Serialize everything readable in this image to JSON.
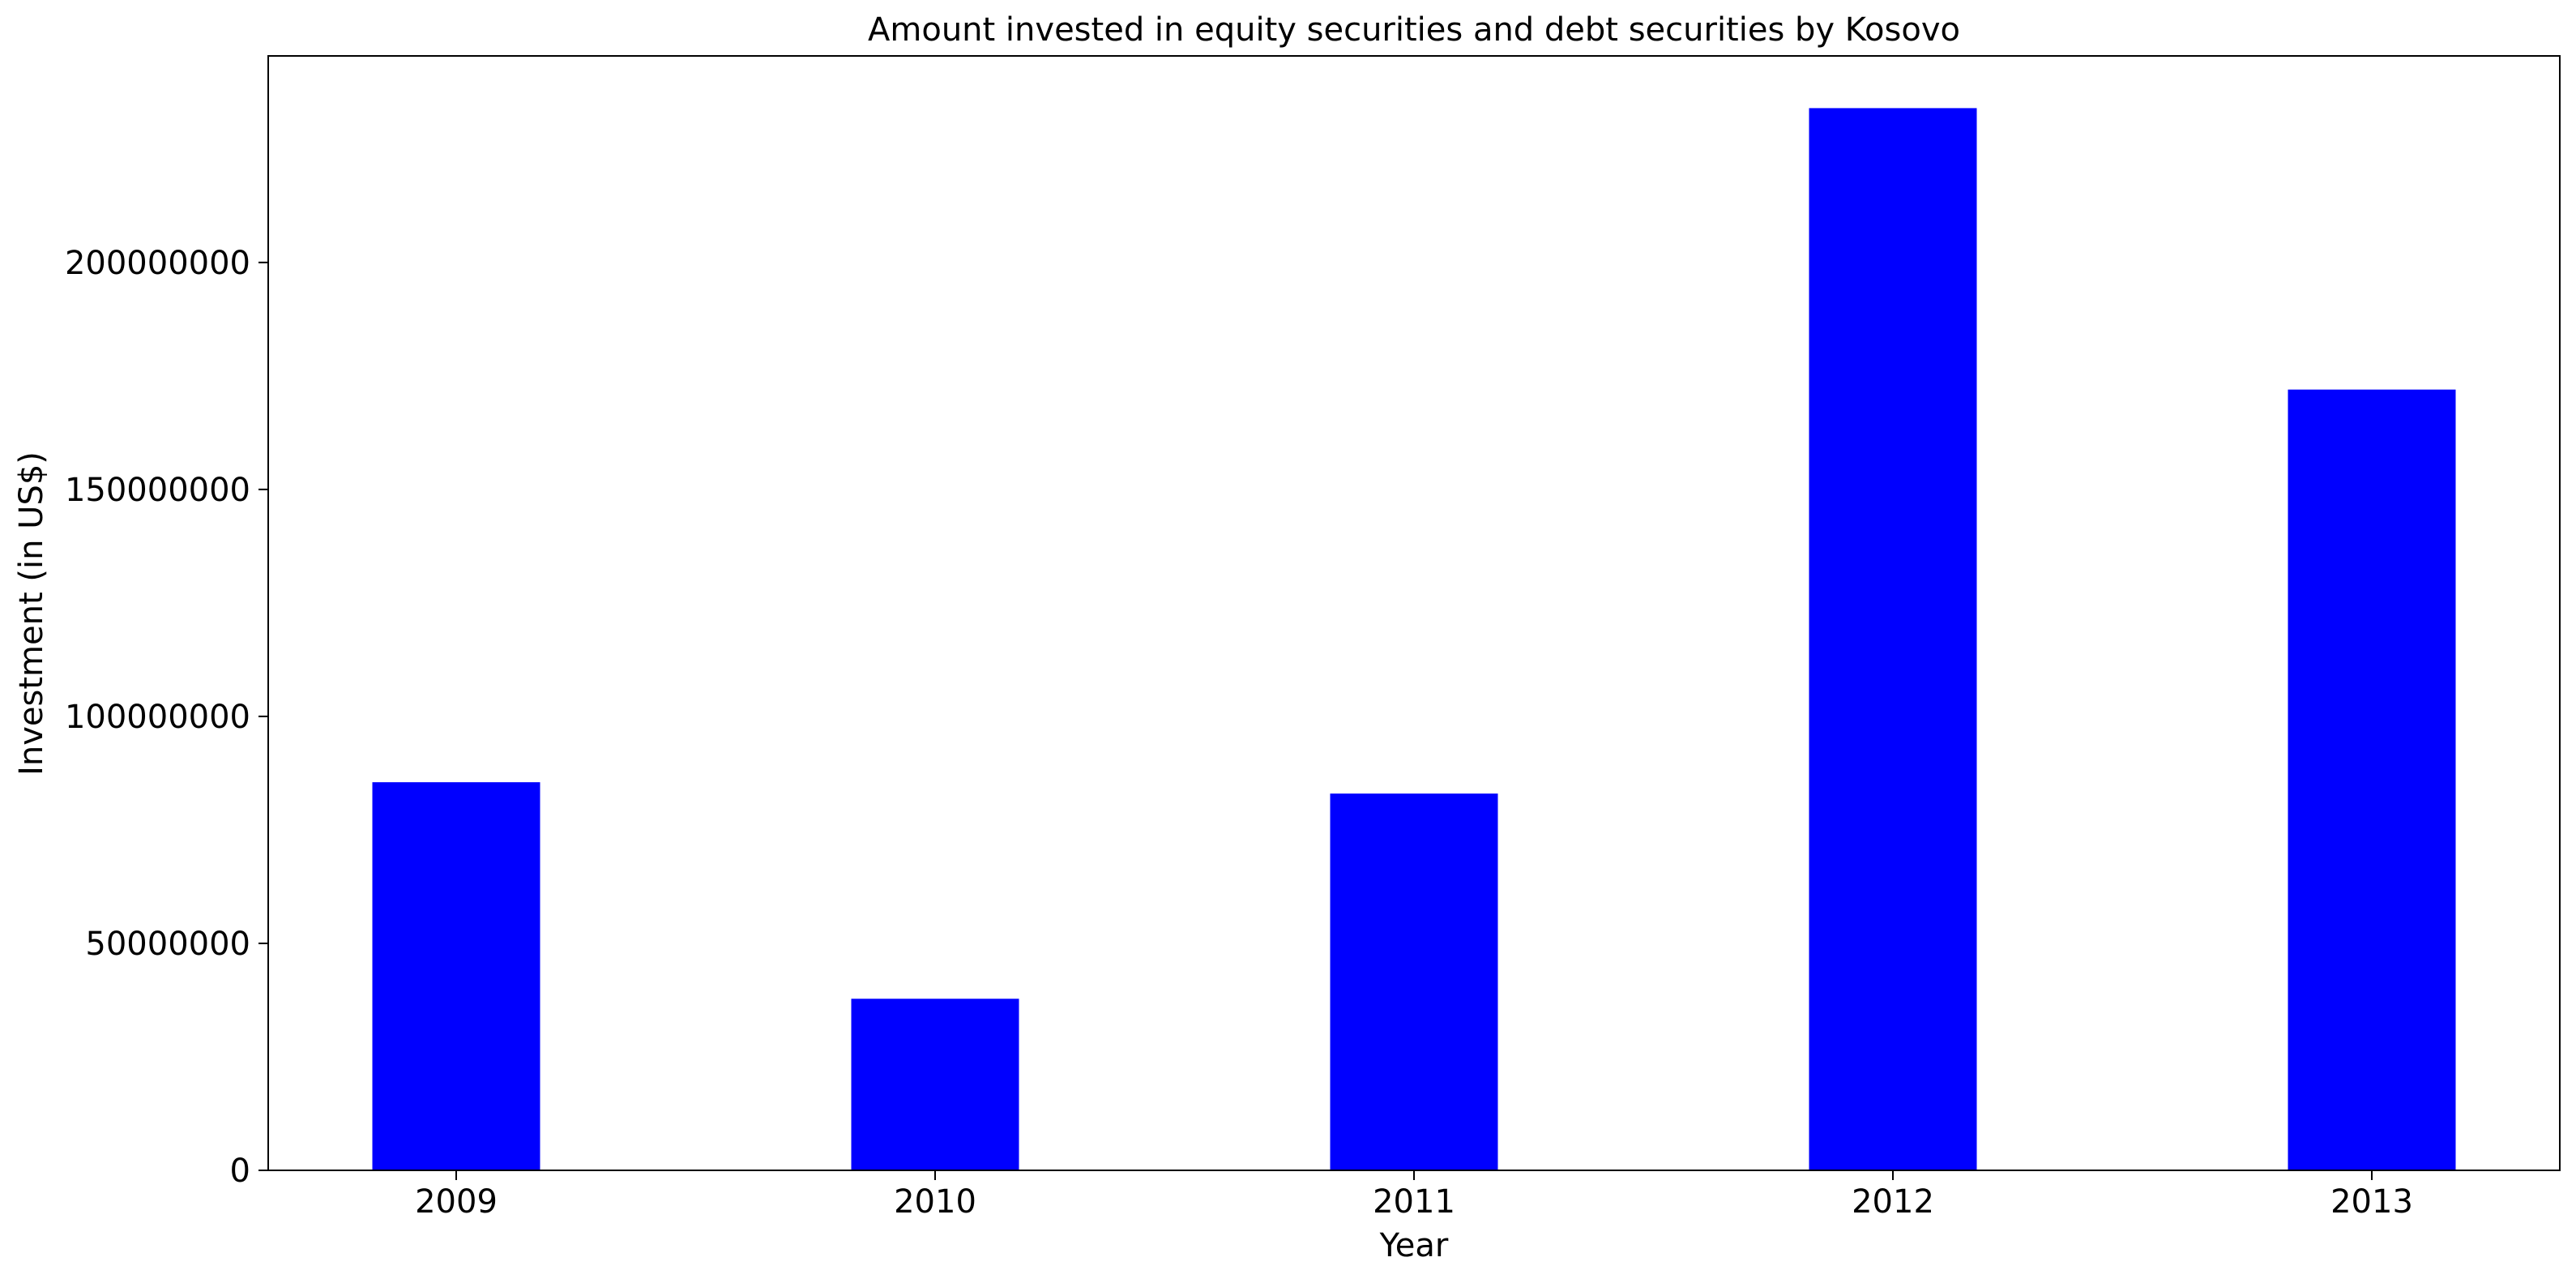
{
  "chart_data": {
    "type": "bar",
    "title": "Amount invested in equity securities and debt securities by Kosovo",
    "xlabel": "Year",
    "ylabel": "Investment (in US$)",
    "categories": [
      "2009",
      "2010",
      "2011",
      "2012",
      "2013"
    ],
    "values": [
      85500000,
      37800000,
      83000000,
      234000000,
      172000000
    ],
    "ylim": [
      0,
      245500000
    ],
    "yticks": [
      0,
      50000000,
      100000000,
      150000000,
      200000000
    ],
    "ytick_labels": [
      "0",
      "50000000",
      "100000000",
      "150000000",
      "200000000"
    ],
    "bar_color": "#0000ff",
    "grid": false,
    "legend": "none"
  }
}
